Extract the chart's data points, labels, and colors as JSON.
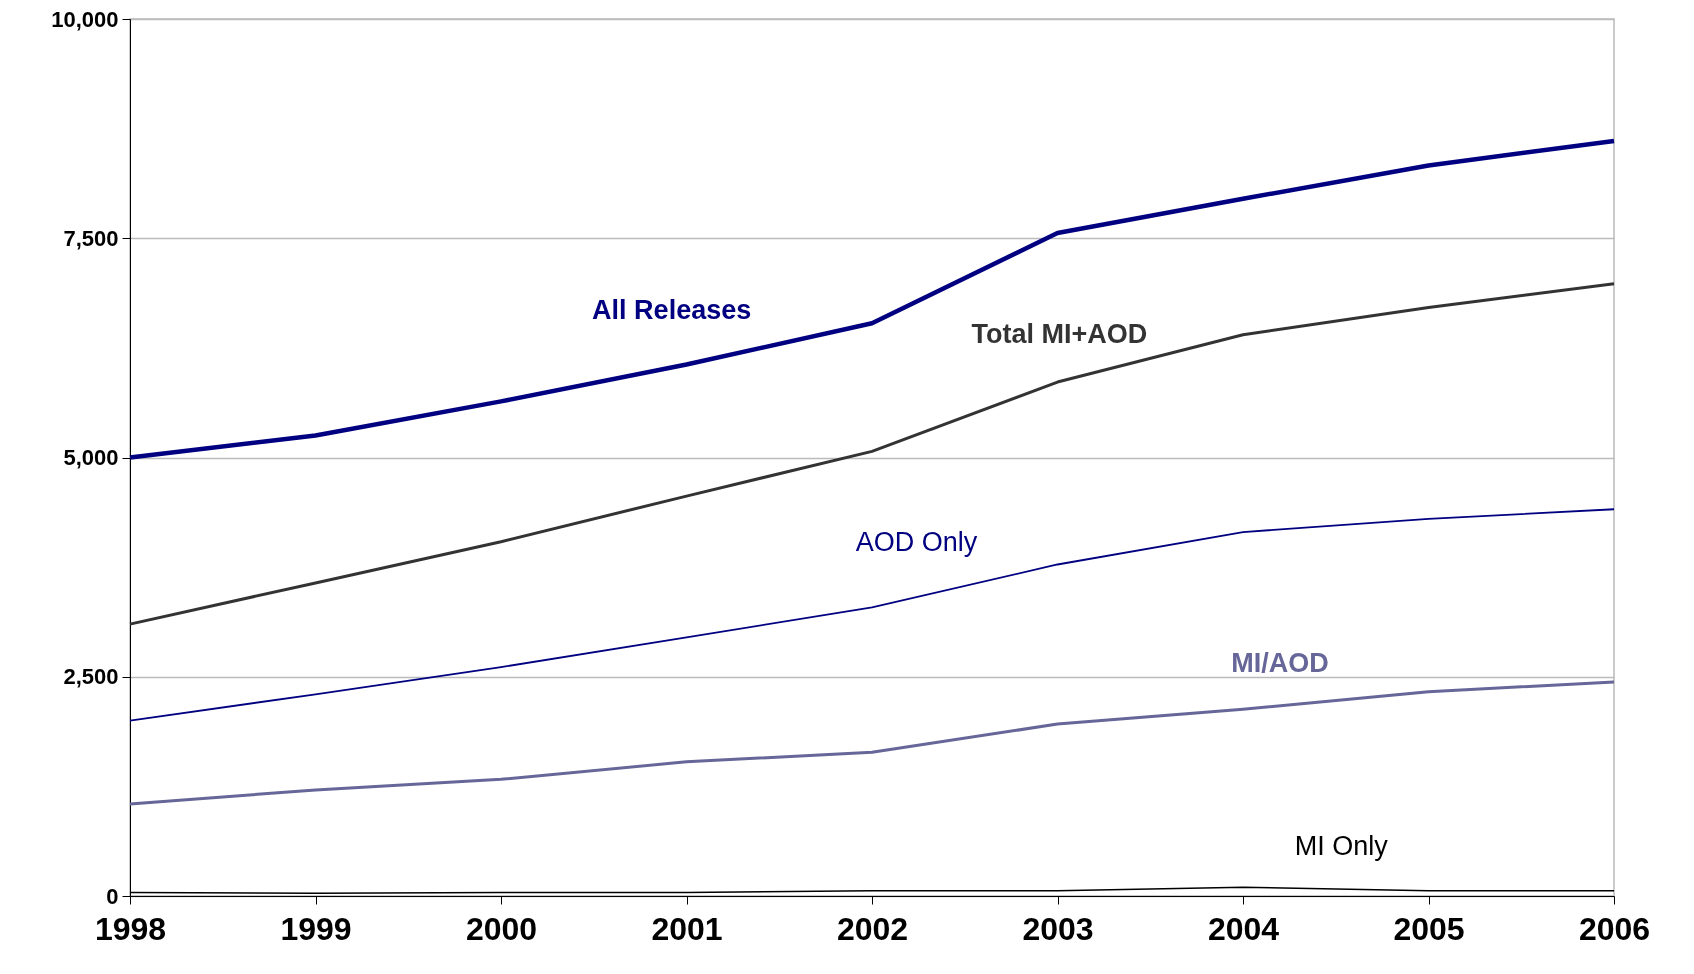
{
  "chart_data": {
    "type": "line",
    "x": [
      1998,
      1999,
      2000,
      2001,
      2002,
      2003,
      2004,
      2005,
      2006
    ],
    "xlim": [
      1998,
      2006
    ],
    "xticks": [
      1998,
      1999,
      2000,
      2001,
      2002,
      2003,
      2004,
      2005,
      2006
    ],
    "ylim": [
      0,
      10000
    ],
    "yticks": [
      {
        "value": 0,
        "label": "0"
      },
      {
        "value": 2500,
        "label": "2,500"
      },
      {
        "value": 5000,
        "label": "5,000"
      },
      {
        "value": 7500,
        "label": "7,500"
      },
      {
        "value": 10000,
        "label": "10,000"
      }
    ],
    "grid": "y",
    "series": [
      {
        "name": "All Releases",
        "color": "#000080",
        "values": [
          5000,
          5250,
          5640,
          6060,
          6530,
          7560,
          7950,
          8330,
          8610
        ]
      },
      {
        "name": "Total MI+AOD",
        "color": "#333333",
        "values": [
          3100,
          3570,
          4040,
          4560,
          5070,
          5860,
          6400,
          6710,
          6980
        ]
      },
      {
        "name": "AOD Only",
        "color": "#000080",
        "values": [
          2000,
          2300,
          2610,
          2950,
          3290,
          3780,
          4150,
          4300,
          4410
        ]
      },
      {
        "name": "MI/AOD",
        "color": "#666699",
        "values": [
          1050,
          1210,
          1330,
          1530,
          1640,
          1960,
          2130,
          2330,
          2440
        ]
      },
      {
        "name": "MI Only",
        "color": "#000000",
        "values": [
          40,
          30,
          40,
          40,
          60,
          60,
          100,
          60,
          60
        ]
      }
    ]
  }
}
